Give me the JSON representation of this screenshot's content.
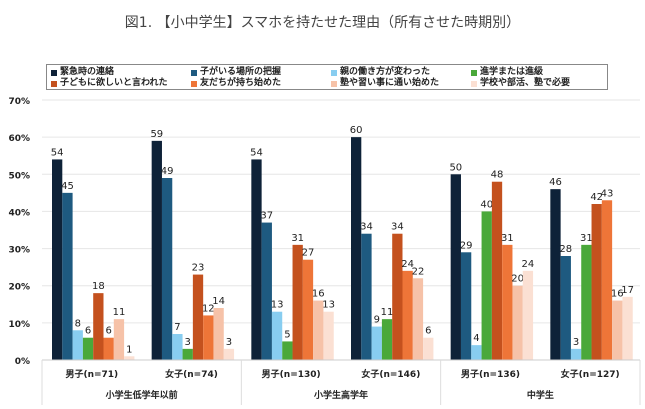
{
  "chart_data": {
    "type": "bar",
    "title": "図1. 【小中学生】スマホを持たせた理由（所有させた時期別）",
    "categories": [
      "男子(n=71)",
      "女子(n=74)",
      "男子(n=130)",
      "女子(n=146)",
      "男子(n=136)",
      "女子(n=127)"
    ],
    "groups": [
      {
        "label": "小学生低学年以前",
        "span": 2
      },
      {
        "label": "小学生高学年",
        "span": 2
      },
      {
        "label": "中学生",
        "span": 2
      }
    ],
    "series": [
      {
        "name": "緊急時の連絡",
        "color": "#0e2238",
        "values": [
          54,
          59,
          54,
          60,
          50,
          46
        ]
      },
      {
        "name": "子がいる場所の把握",
        "color": "#1e5a80",
        "values": [
          45,
          49,
          37,
          34,
          29,
          28
        ]
      },
      {
        "name": "親の働き方が変わった",
        "color": "#88cdf0",
        "values": [
          8,
          7,
          13,
          9,
          4,
          3
        ]
      },
      {
        "name": "進学または進級",
        "color": "#4aa83a",
        "values": [
          6,
          3,
          5,
          11,
          40,
          31
        ]
      },
      {
        "name": "子どもに欲しいと言われた",
        "color": "#c4511e",
        "values": [
          18,
          23,
          31,
          34,
          48,
          42
        ]
      },
      {
        "name": "友だちが持ち始めた",
        "color": "#ee7538",
        "values": [
          6,
          12,
          27,
          24,
          31,
          43
        ]
      },
      {
        "name": "塾や習い事に通い始めた",
        "color": "#f6c2a8",
        "values": [
          11,
          14,
          16,
          22,
          20,
          16
        ]
      },
      {
        "name": "学校や部活、塾で必要",
        "color": "#fbe0d3",
        "values": [
          1,
          3,
          13,
          6,
          24,
          17
        ]
      }
    ],
    "yticks": [
      "0%",
      "10%",
      "20%",
      "30%",
      "40%",
      "50%",
      "60%",
      "70%"
    ],
    "ylim": [
      0,
      70
    ],
    "grid": true,
    "legend": "top"
  }
}
